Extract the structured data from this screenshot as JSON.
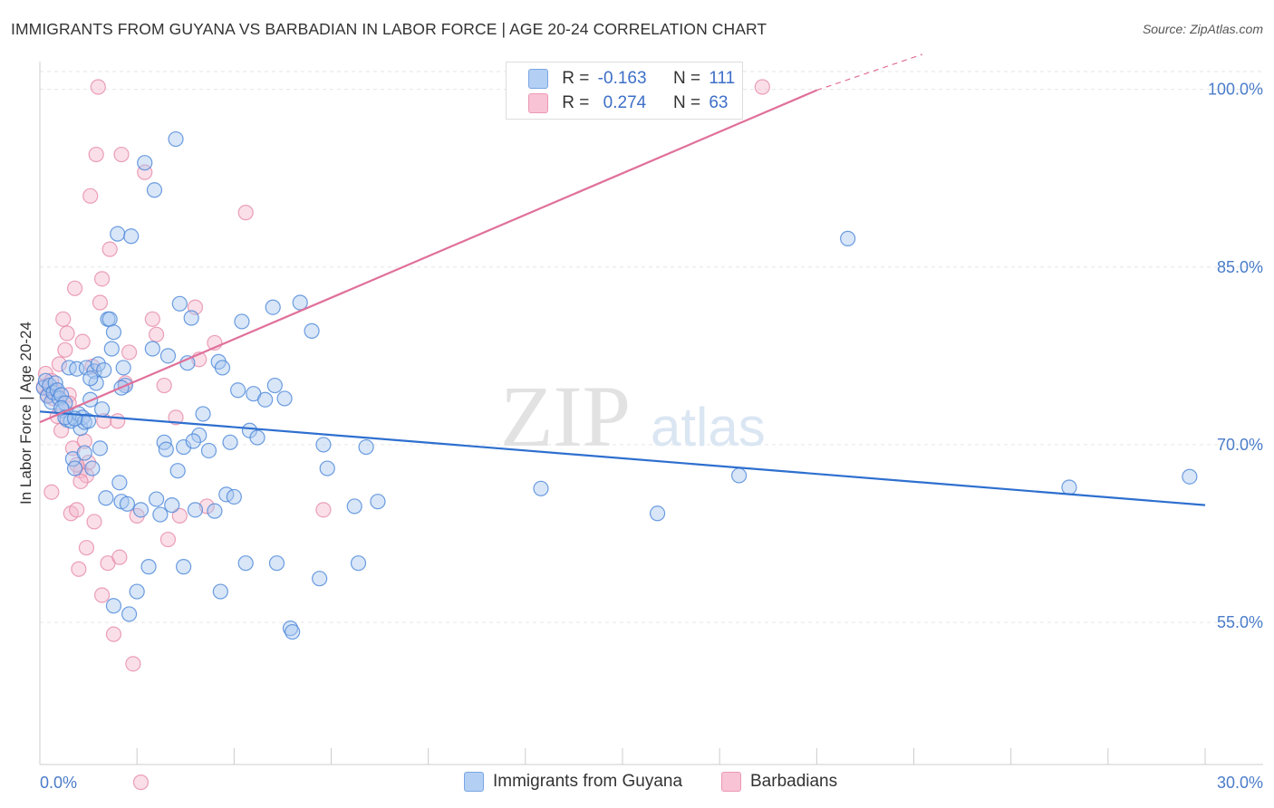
{
  "title": "IMMIGRANTS FROM GUYANA VS BARBADIAN IN LABOR FORCE | AGE 20-24 CORRELATION CHART",
  "source": "Source: ZipAtlas.com",
  "watermark": {
    "zip": "ZIP",
    "atlas": "atlas"
  },
  "legend": {
    "r_label": "R =",
    "n_label": "N =",
    "series": [
      {
        "r": "-0.163",
        "n": "111"
      },
      {
        "r": "0.274",
        "n": "63"
      }
    ]
  },
  "colors": {
    "blue_fill": "#a8c8f0",
    "blue_stroke": "#4a86d8",
    "blue_line": "#2e6fcf",
    "pink_fill": "#f5b8cc",
    "pink_stroke": "#e68aa8",
    "pink_line": "#e0709a",
    "grid": "#e6e6e6",
    "tick": "#4a7cc9"
  },
  "chart_data": {
    "type": "scatter",
    "title": "IMMIGRANTS FROM GUYANA VS BARBADIAN IN LABOR FORCE | AGE 20-24 CORRELATION CHART",
    "xlabel": "",
    "ylabel": "In Labor Force | Age 20-24",
    "xlim": [
      0,
      30
    ],
    "ylim": [
      43,
      101.5
    ],
    "x_tick_labels": [
      "0.0%",
      "30.0%"
    ],
    "y_ticks": [
      55,
      70,
      85,
      100
    ],
    "y_tick_labels": [
      "55.0%",
      "70.0%",
      "85.0%",
      "100.0%"
    ],
    "legend_position": "bottom",
    "series": [
      {
        "name": "Immigrants from Guyana",
        "trend": {
          "x": [
            0,
            30
          ],
          "y": [
            72.8,
            64.9
          ]
        },
        "points": [
          [
            0.1,
            74.8
          ],
          [
            0.15,
            75.4
          ],
          [
            0.2,
            74.1
          ],
          [
            0.25,
            75.0
          ],
          [
            0.3,
            73.6
          ],
          [
            0.35,
            74.4
          ],
          [
            0.4,
            75.2
          ],
          [
            0.45,
            74.6
          ],
          [
            0.5,
            73.9
          ],
          [
            0.55,
            74.2
          ],
          [
            0.6,
            72.9
          ],
          [
            0.65,
            73.5
          ],
          [
            0.7,
            72.1
          ],
          [
            0.75,
            76.5
          ],
          [
            0.8,
            72.0
          ],
          [
            0.85,
            68.8
          ],
          [
            0.9,
            68.0
          ],
          [
            0.95,
            76.4
          ],
          [
            1.0,
            72.6
          ],
          [
            1.05,
            71.4
          ],
          [
            1.1,
            72.3
          ],
          [
            1.15,
            71.9
          ],
          [
            1.2,
            76.5
          ],
          [
            1.25,
            72.0
          ],
          [
            1.3,
            73.8
          ],
          [
            1.35,
            68.0
          ],
          [
            1.4,
            76.2
          ],
          [
            1.45,
            75.2
          ],
          [
            1.5,
            76.8
          ],
          [
            1.55,
            69.7
          ],
          [
            1.6,
            73.0
          ],
          [
            1.7,
            65.5
          ],
          [
            1.75,
            80.6
          ],
          [
            1.8,
            80.6
          ],
          [
            1.85,
            78.1
          ],
          [
            1.9,
            79.5
          ],
          [
            1.9,
            56.4
          ],
          [
            2.0,
            87.8
          ],
          [
            2.05,
            66.8
          ],
          [
            2.1,
            65.2
          ],
          [
            2.15,
            76.5
          ],
          [
            2.2,
            75.0
          ],
          [
            2.25,
            65.0
          ],
          [
            2.3,
            55.7
          ],
          [
            2.35,
            87.6
          ],
          [
            2.5,
            57.6
          ],
          [
            2.7,
            93.8
          ],
          [
            2.8,
            59.7
          ],
          [
            2.9,
            78.1
          ],
          [
            2.95,
            91.5
          ],
          [
            3.0,
            65.4
          ],
          [
            3.1,
            64.1
          ],
          [
            3.2,
            70.2
          ],
          [
            3.3,
            77.5
          ],
          [
            3.4,
            64.9
          ],
          [
            3.5,
            95.8
          ],
          [
            3.55,
            67.8
          ],
          [
            3.6,
            81.9
          ],
          [
            3.7,
            59.7
          ],
          [
            3.7,
            69.8
          ],
          [
            3.8,
            76.9
          ],
          [
            3.9,
            80.7
          ],
          [
            4.0,
            64.5
          ],
          [
            4.1,
            70.8
          ],
          [
            4.2,
            72.6
          ],
          [
            4.5,
            64.4
          ],
          [
            4.6,
            77.0
          ],
          [
            4.65,
            57.6
          ],
          [
            4.7,
            76.5
          ],
          [
            4.8,
            65.8
          ],
          [
            4.9,
            70.2
          ],
          [
            5.0,
            65.6
          ],
          [
            5.2,
            80.4
          ],
          [
            5.3,
            60.0
          ],
          [
            5.4,
            71.2
          ],
          [
            5.5,
            74.3
          ],
          [
            5.8,
            73.8
          ],
          [
            6.0,
            81.6
          ],
          [
            6.05,
            75.0
          ],
          [
            6.1,
            60.0
          ],
          [
            6.45,
            54.5
          ],
          [
            6.5,
            54.2
          ],
          [
            6.7,
            82.0
          ],
          [
            7.0,
            79.6
          ],
          [
            7.2,
            58.7
          ],
          [
            7.3,
            70.0
          ],
          [
            7.4,
            68.0
          ],
          [
            8.1,
            64.8
          ],
          [
            8.2,
            60.0
          ],
          [
            8.4,
            69.8
          ],
          [
            8.7,
            65.2
          ],
          [
            12.9,
            66.3
          ],
          [
            15.9,
            64.2
          ],
          [
            18.0,
            67.4
          ],
          [
            20.8,
            87.4
          ],
          [
            26.5,
            66.4
          ],
          [
            29.6,
            67.3
          ],
          [
            0.55,
            73.1
          ],
          [
            0.65,
            72.3
          ],
          [
            0.9,
            72.2
          ],
          [
            1.15,
            69.3
          ],
          [
            1.3,
            75.6
          ],
          [
            1.65,
            76.3
          ],
          [
            2.1,
            74.8
          ],
          [
            2.6,
            64.5
          ],
          [
            3.25,
            69.6
          ],
          [
            3.95,
            70.3
          ],
          [
            4.35,
            69.5
          ],
          [
            5.1,
            74.6
          ],
          [
            5.6,
            70.6
          ],
          [
            6.3,
            73.9
          ]
        ]
      },
      {
        "name": "Barbadians",
        "trend": {
          "x": [
            0,
            20.2
          ],
          "y": [
            71.9,
            100.2
          ]
        },
        "trend_solid_until_x": 20.0,
        "points": [
          [
            0.1,
            74.9
          ],
          [
            0.15,
            76.0
          ],
          [
            0.2,
            74.2
          ],
          [
            0.25,
            74.6
          ],
          [
            0.3,
            75.4
          ],
          [
            0.35,
            73.9
          ],
          [
            0.4,
            74.5
          ],
          [
            0.45,
            72.4
          ],
          [
            0.5,
            76.8
          ],
          [
            0.55,
            71.2
          ],
          [
            0.6,
            80.6
          ],
          [
            0.65,
            78.0
          ],
          [
            0.7,
            79.4
          ],
          [
            0.75,
            74.2
          ],
          [
            0.8,
            64.2
          ],
          [
            0.85,
            69.7
          ],
          [
            0.9,
            83.2
          ],
          [
            0.95,
            64.5
          ],
          [
            1.0,
            59.5
          ],
          [
            1.05,
            67.8
          ],
          [
            1.1,
            78.7
          ],
          [
            1.15,
            70.3
          ],
          [
            1.2,
            67.4
          ],
          [
            1.25,
            68.5
          ],
          [
            1.3,
            91.0
          ],
          [
            1.35,
            76.6
          ],
          [
            1.4,
            63.5
          ],
          [
            1.45,
            94.5
          ],
          [
            1.5,
            100.2
          ],
          [
            1.55,
            82.0
          ],
          [
            1.6,
            84.0
          ],
          [
            1.65,
            72.0
          ],
          [
            1.75,
            60.0
          ],
          [
            1.8,
            86.5
          ],
          [
            1.9,
            54.0
          ],
          [
            2.0,
            72.0
          ],
          [
            2.1,
            94.5
          ],
          [
            2.2,
            75.2
          ],
          [
            2.3,
            77.8
          ],
          [
            2.4,
            51.5
          ],
          [
            2.5,
            64.0
          ],
          [
            2.6,
            41.5
          ],
          [
            2.7,
            93.0
          ],
          [
            2.9,
            80.6
          ],
          [
            3.0,
            79.3
          ],
          [
            3.2,
            75.0
          ],
          [
            3.3,
            62.0
          ],
          [
            3.5,
            72.3
          ],
          [
            3.6,
            64.0
          ],
          [
            4.0,
            81.6
          ],
          [
            4.1,
            77.2
          ],
          [
            4.3,
            64.8
          ],
          [
            4.5,
            78.6
          ],
          [
            5.3,
            89.6
          ],
          [
            7.3,
            64.5
          ],
          [
            18.6,
            100.2
          ],
          [
            0.95,
            68.3
          ],
          [
            1.2,
            61.3
          ],
          [
            1.6,
            57.3
          ],
          [
            2.05,
            60.5
          ],
          [
            0.3,
            66.0
          ],
          [
            0.75,
            73.5
          ],
          [
            1.05,
            66.9
          ]
        ]
      }
    ]
  },
  "bottom_legend": {
    "items": [
      {
        "label": "Immigrants from Guyana"
      },
      {
        "label": "Barbadians"
      }
    ]
  }
}
